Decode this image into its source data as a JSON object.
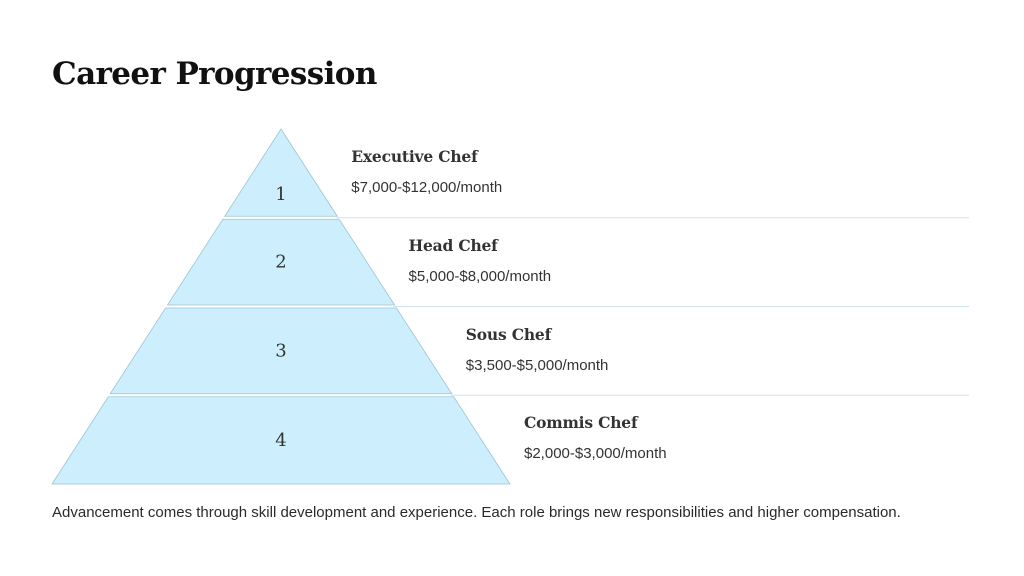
{
  "title": "Career Progression",
  "colors": {
    "tier_fill": "#cdeefc",
    "tier_stroke": "#9bc4d6",
    "divider": "#cfe2ea",
    "text": "#333333"
  },
  "tiers": [
    {
      "number": "1",
      "role": "Executive Chef",
      "salary": "$7,000-$12,000/month"
    },
    {
      "number": "2",
      "role": "Head Chef",
      "salary": "$5,000-$8,000/month"
    },
    {
      "number": "3",
      "role": "Sous Chef",
      "salary": "$3,500-$5,000/month"
    },
    {
      "number": "4",
      "role": "Commis Chef",
      "salary": "$2,000-$3,000/month"
    }
  ],
  "footnote": "Advancement comes through skill development and experience. Each role brings new responsibilities and higher compensation."
}
